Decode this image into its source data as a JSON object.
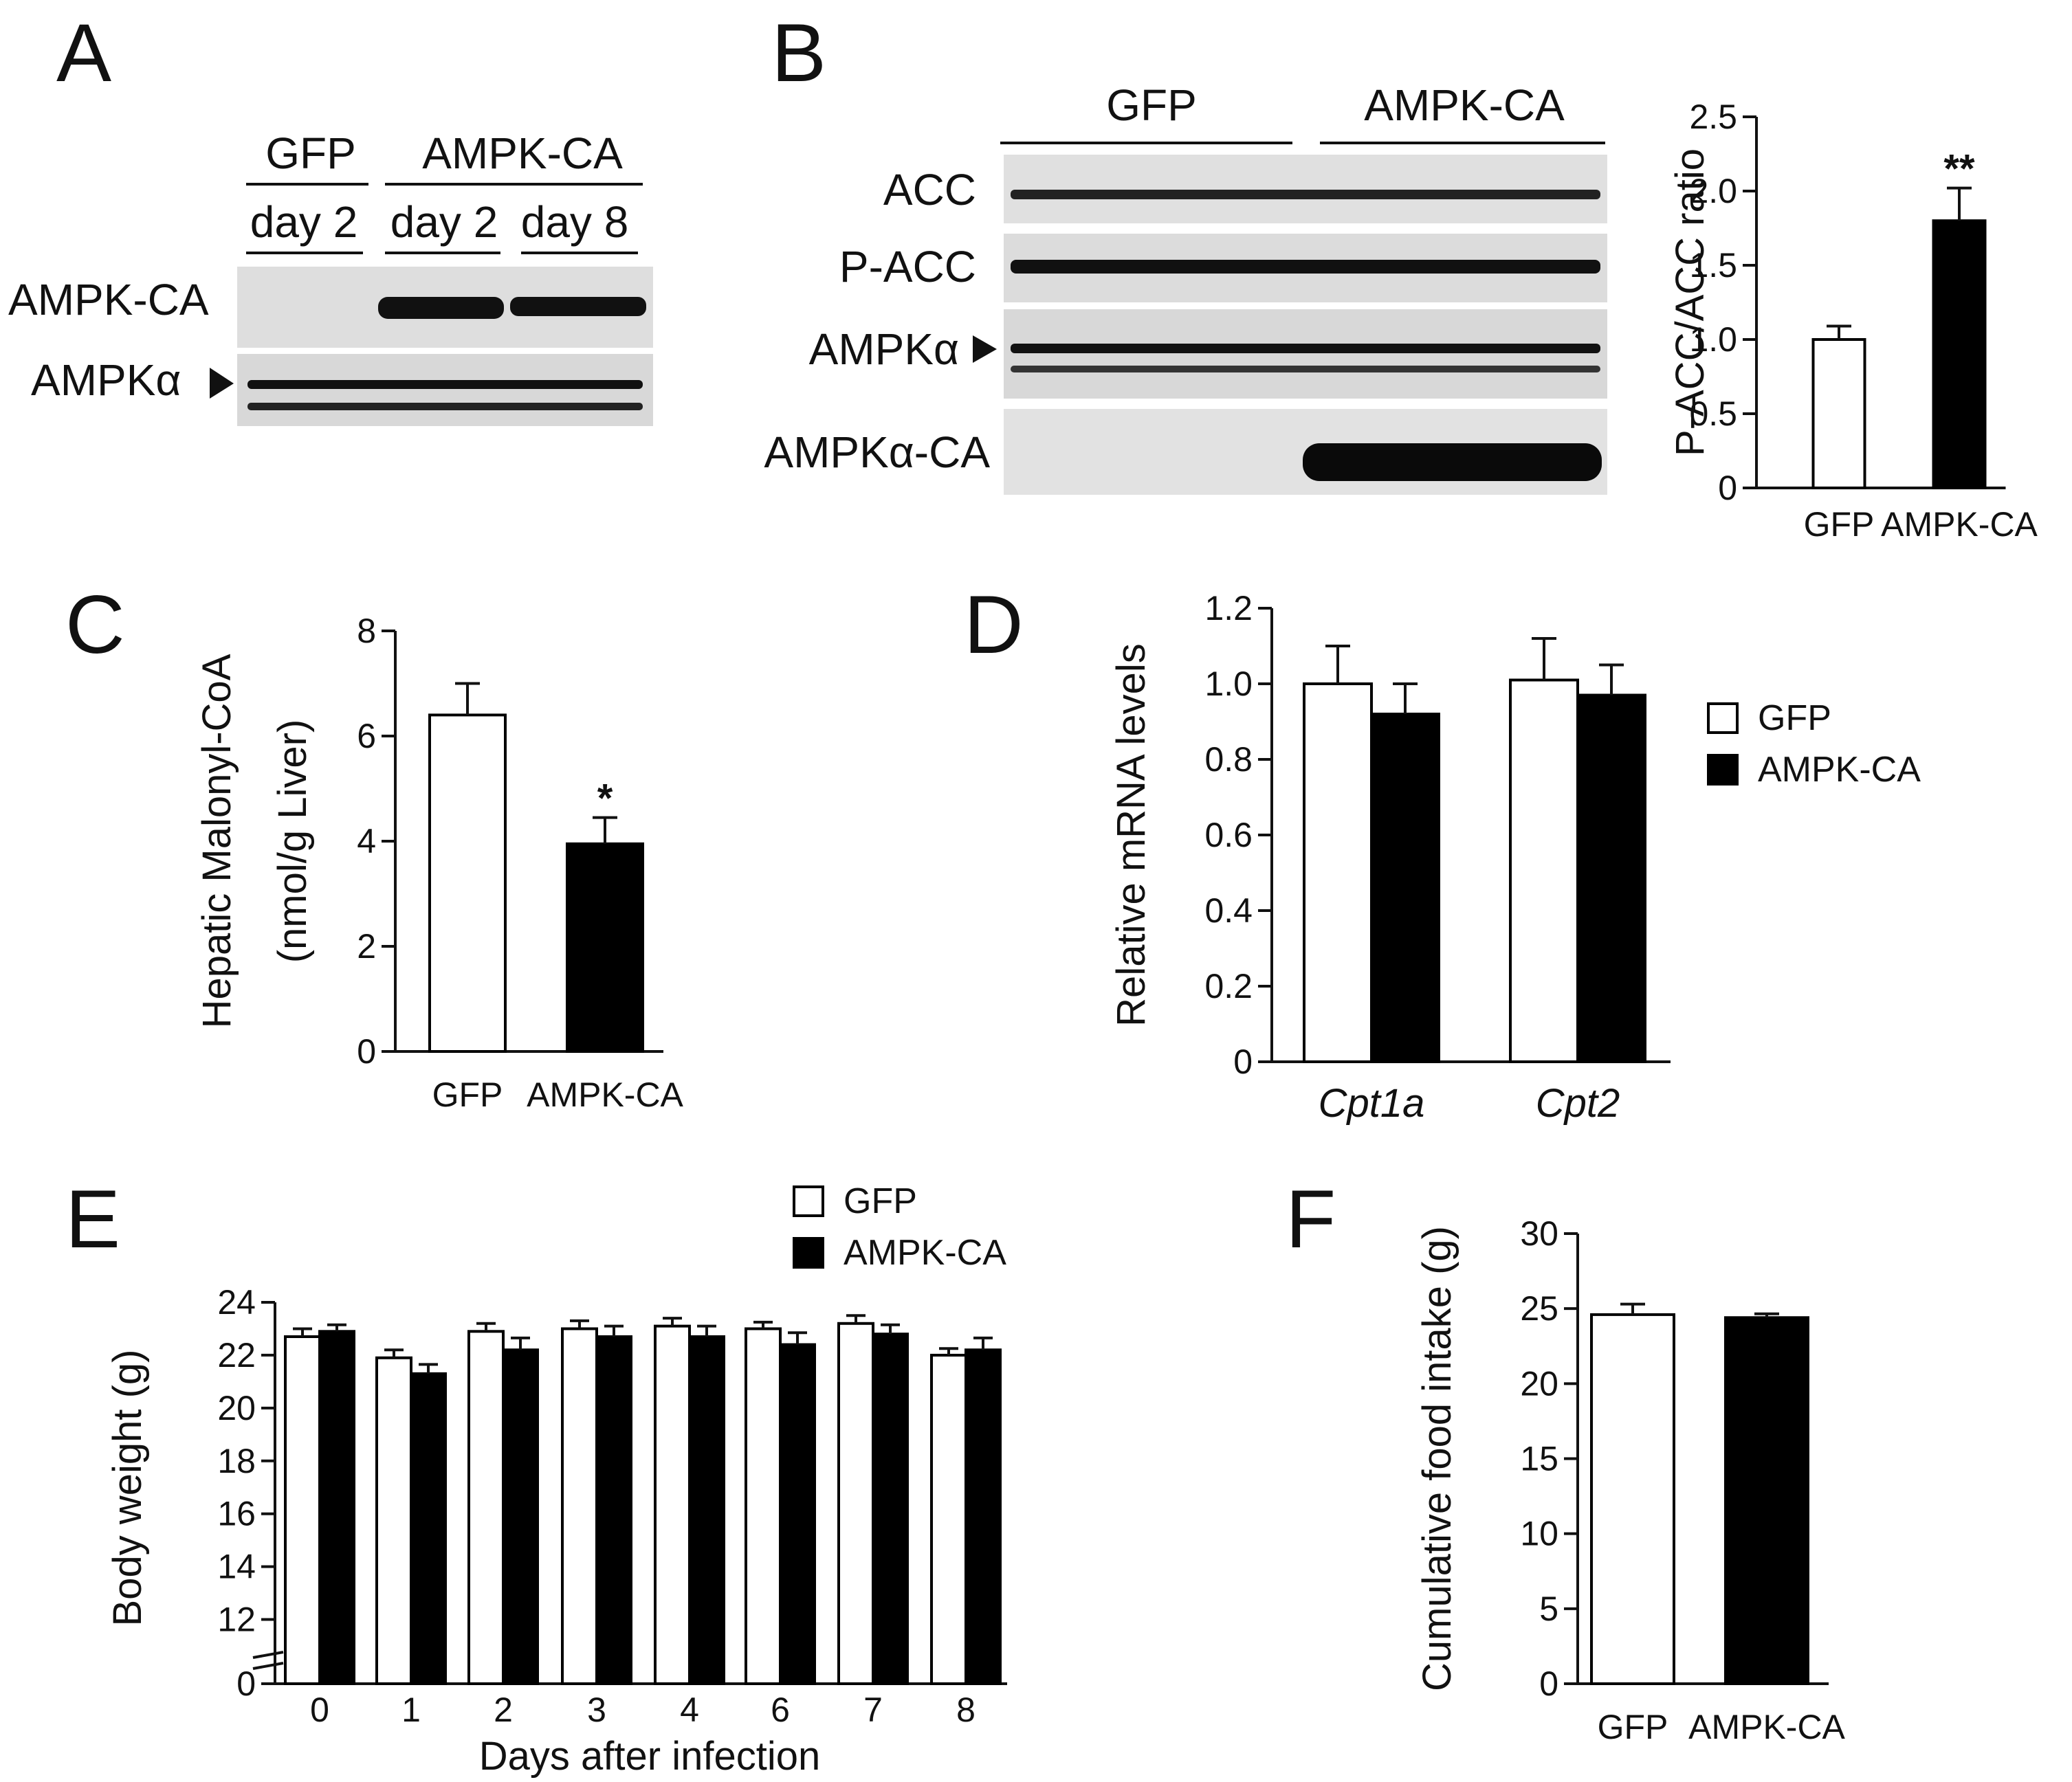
{
  "panels": {
    "A": {
      "letter": "A",
      "groups": [
        "GFP",
        "AMPK-CA"
      ],
      "days": [
        "day 2",
        "day 2",
        "day 8"
      ],
      "rows": [
        "AMPK-CA",
        "AMPKα"
      ]
    },
    "B": {
      "letter": "B",
      "groups": [
        "GFP",
        "AMPK-CA"
      ],
      "rows": [
        "ACC",
        "P-ACC",
        "AMPKα",
        "AMPKα-CA"
      ]
    },
    "C": {
      "letter": "C"
    },
    "D": {
      "letter": "D"
    },
    "E": {
      "letter": "E"
    },
    "F": {
      "letter": "F"
    }
  },
  "colors": {
    "gfp": "#ffffff",
    "ampk": "#000000",
    "outline": "#000000"
  },
  "chart_data": [
    {
      "panel": "B",
      "type": "bar",
      "categories": [
        "GFP",
        "AMPK-CA"
      ],
      "values": [
        1.0,
        1.8
      ],
      "errors": [
        0.09,
        0.22
      ],
      "significance": [
        "",
        "**"
      ],
      "ylabel": "P-ACC/ACC ratio",
      "ylim": [
        0,
        2.5
      ],
      "yticks": [
        "0",
        "0.5",
        "1.0",
        "1.5",
        "2.0",
        "2.5"
      ]
    },
    {
      "panel": "C",
      "type": "bar",
      "categories": [
        "GFP",
        "AMPK-CA"
      ],
      "values": [
        6.4,
        3.95
      ],
      "errors": [
        0.6,
        0.5
      ],
      "significance": [
        "",
        "*"
      ],
      "ylabel": "Hepatic Malonyl-CoA",
      "ylabel2": "(nmol/g Liver)",
      "ylim": [
        0,
        8
      ],
      "yticks": [
        "0",
        "2",
        "4",
        "6",
        "8"
      ]
    },
    {
      "panel": "D",
      "type": "bar",
      "categories": [
        "Cpt1a",
        "Cpt2"
      ],
      "series": [
        {
          "name": "GFP",
          "values": [
            1.0,
            1.01
          ],
          "errors": [
            0.1,
            0.11
          ]
        },
        {
          "name": "AMPK-CA",
          "values": [
            0.92,
            0.97
          ],
          "errors": [
            0.08,
            0.08
          ]
        }
      ],
      "ylabel": "Relative mRNA levels",
      "ylim": [
        0,
        1.2
      ],
      "yticks": [
        "0",
        "0.2",
        "0.4",
        "0.6",
        "0.8",
        "1.0",
        "1.2"
      ],
      "legend": [
        "GFP",
        "AMPK-CA"
      ]
    },
    {
      "panel": "E",
      "type": "bar",
      "categories": [
        "0",
        "1",
        "2",
        "3",
        "4",
        "6",
        "7",
        "8"
      ],
      "series": [
        {
          "name": "GFP",
          "values": [
            22.7,
            21.9,
            22.9,
            23.0,
            23.1,
            23.0,
            23.2,
            22.0
          ],
          "errors": [
            0.3,
            0.3,
            0.3,
            0.3,
            0.3,
            0.25,
            0.3,
            0.25
          ]
        },
        {
          "name": "AMPK-CA",
          "values": [
            22.9,
            21.3,
            22.2,
            22.7,
            22.7,
            22.4,
            22.8,
            22.2
          ],
          "errors": [
            0.25,
            0.35,
            0.45,
            0.4,
            0.4,
            0.45,
            0.35,
            0.45
          ]
        }
      ],
      "xlabel": "Days after infection",
      "ylabel": "Body weight (g)",
      "ylim": [
        0,
        24
      ],
      "axis_break": [
        0,
        11
      ],
      "yticks": [
        "0",
        "12",
        "14",
        "16",
        "18",
        "20",
        "22",
        "24"
      ],
      "legend": [
        "GFP",
        "AMPK-CA"
      ]
    },
    {
      "panel": "F",
      "type": "bar",
      "categories": [
        "GFP",
        "AMPK-CA"
      ],
      "values": [
        24.6,
        24.4
      ],
      "errors": [
        0.7,
        0.25
      ],
      "ylabel": "Cumulative food intake (g)",
      "ylim": [
        0,
        30
      ],
      "yticks": [
        "0",
        "5",
        "10",
        "15",
        "20",
        "25",
        "30"
      ]
    }
  ]
}
